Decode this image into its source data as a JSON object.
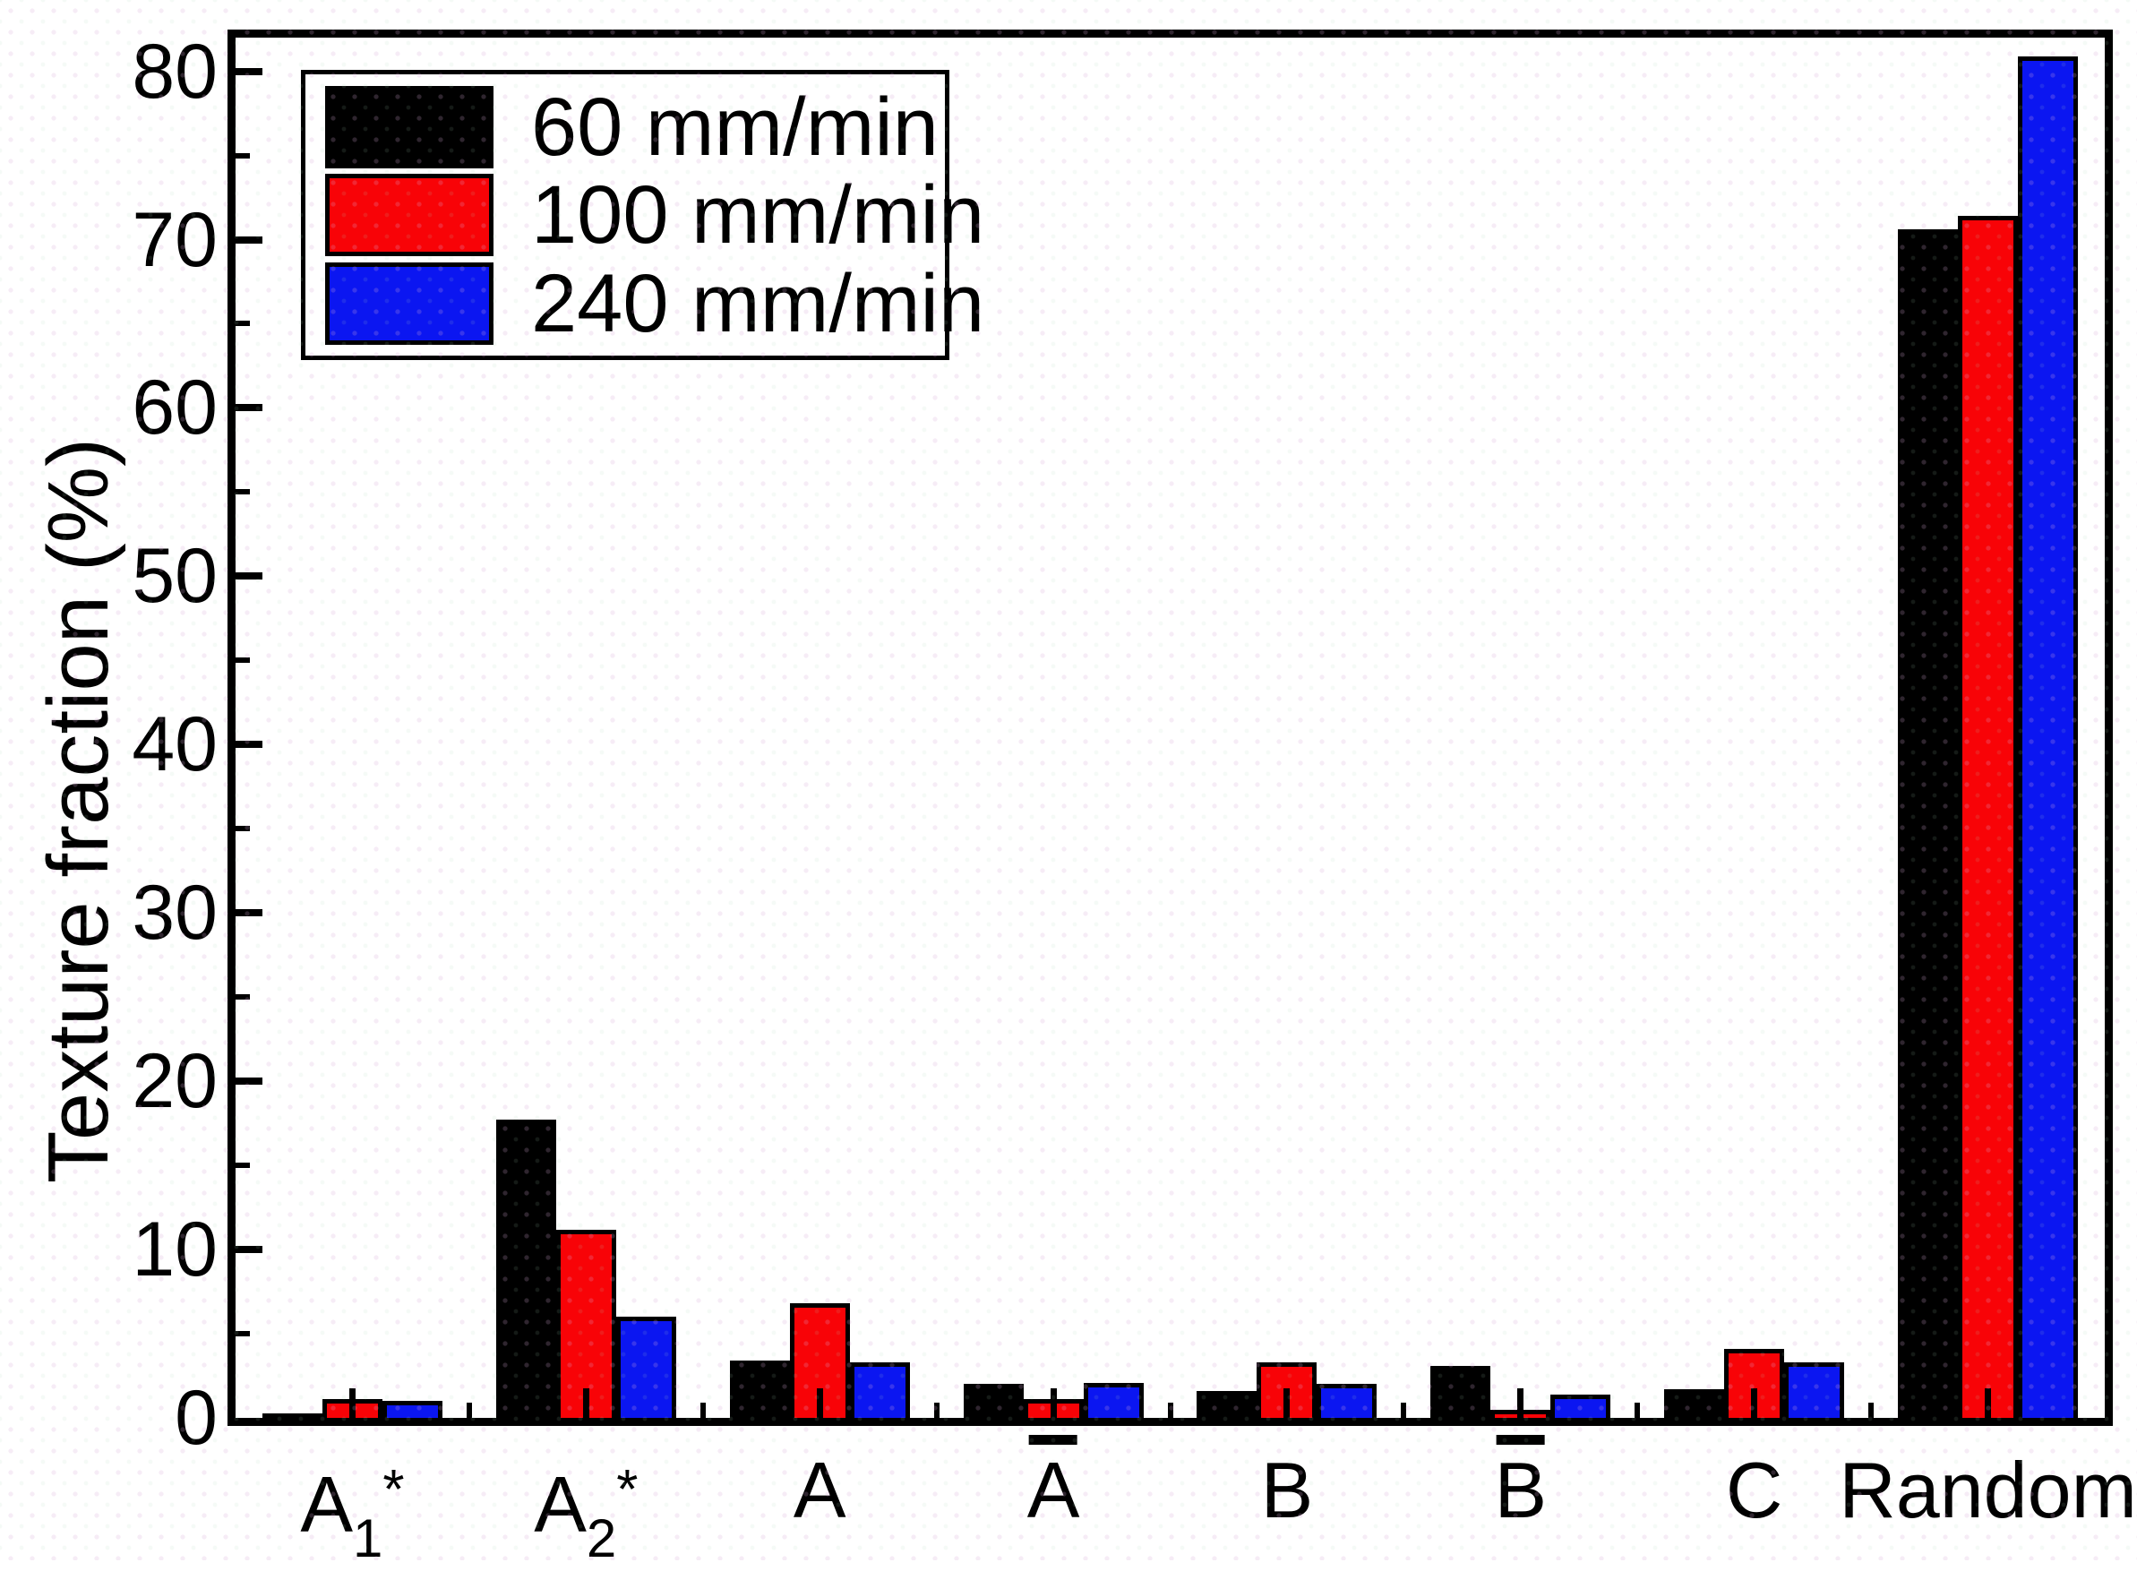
{
  "chart_data": {
    "type": "bar",
    "title": "",
    "xlabel": "",
    "ylabel": "Texture fraction (%)",
    "ylim": [
      0,
      82
    ],
    "yticks_major": [
      0,
      10,
      20,
      30,
      40,
      50,
      60,
      70,
      80
    ],
    "yticks_minor": [
      5,
      15,
      25,
      35,
      45,
      55,
      65,
      75
    ],
    "grid": false,
    "legend_position": "top-left-inside",
    "categories": [
      {
        "label": "A1*",
        "base": "A",
        "sub": "1",
        "sup": "*",
        "overbar": false
      },
      {
        "label": "A2*",
        "base": "A",
        "sub": "2",
        "sup": "*",
        "overbar": false
      },
      {
        "label": "A",
        "base": "A",
        "sub": "",
        "sup": "",
        "overbar": false
      },
      {
        "label": "Ā",
        "base": "A",
        "sub": "",
        "sup": "",
        "overbar": true
      },
      {
        "label": "B",
        "base": "B",
        "sub": "",
        "sup": "",
        "overbar": false
      },
      {
        "label": "B̄",
        "base": "B",
        "sub": "",
        "sup": "",
        "overbar": true
      },
      {
        "label": "C",
        "base": "C",
        "sub": "",
        "sup": "",
        "overbar": false
      },
      {
        "label": "Random",
        "base": "Random",
        "sub": "",
        "sup": "",
        "overbar": false
      }
    ],
    "series": [
      {
        "name": "60 mm/min",
        "color": "#000000",
        "values": [
          0.25,
          17.7,
          3.4,
          2.0,
          1.6,
          3.1,
          1.7,
          70.6
        ]
      },
      {
        "name": "100 mm/min",
        "color": "#f80307",
        "values": [
          1.1,
          11.2,
          6.8,
          1.1,
          3.3,
          0.5,
          4.1,
          71.4
        ]
      },
      {
        "name": "240 mm/min",
        "color": "#0b16f1",
        "values": [
          1.0,
          6.0,
          3.3,
          2.1,
          2.0,
          1.4,
          3.3,
          80.9
        ]
      }
    ]
  },
  "colors": {
    "frame": "#000000",
    "bar_border": "#000000",
    "background": "#ffffff",
    "text": "#000000"
  }
}
